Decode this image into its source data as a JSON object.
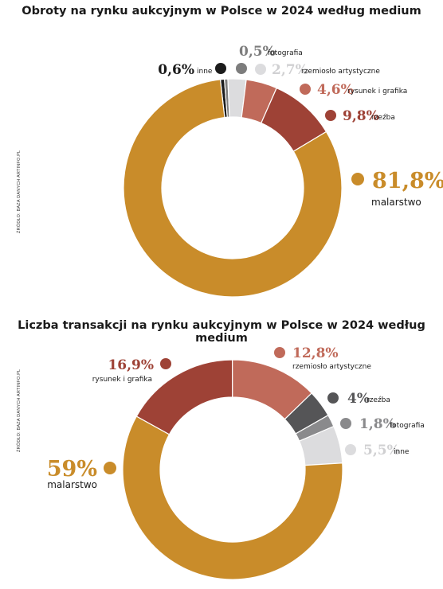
{
  "chart_data": [
    {
      "type": "pie",
      "title": "Obroty na rynku aukcyjnym w Polsce w 2024 według medium",
      "source": "ŹRÓDŁO: BAZA DANYCH ARTINFO.PL",
      "slices": [
        {
          "label": "inne",
          "value": 0.6,
          "display": "0,6%",
          "color": "#1c1c1c",
          "label_color": "#1a1a1a"
        },
        {
          "label": "fotografia",
          "value": 0.5,
          "display": "0,5%",
          "color": "#7d7d7d",
          "label_color": "#7d7d7d"
        },
        {
          "label": "rzemiosło artystyczne",
          "value": 2.7,
          "display": "2,7%",
          "color": "#dcdcde",
          "label_color": "#d0d0d2"
        },
        {
          "label": "rysunek i grafika",
          "value": 4.6,
          "display": "4,6%",
          "color": "#c06a5a",
          "label_color": "#c06a5a"
        },
        {
          "label": "rzeźba",
          "value": 9.8,
          "display": "9,8%",
          "color": "#9e4236",
          "label_color": "#9e4236"
        },
        {
          "label": "malarstwo",
          "value": 81.8,
          "display": "81,8%",
          "color": "#c98c2a",
          "label_color": "#c98c2a"
        }
      ]
    },
    {
      "type": "pie",
      "title": "Liczba transakcji na rynku aukcyjnym w Polsce w 2024 według medium",
      "source": "ŹRÓDŁO: BAZA DANYCH ARTINFO.PL",
      "slices": [
        {
          "label": "rysunek i grafika",
          "value": 16.9,
          "display": "16,9%",
          "color": "#9e4236",
          "label_color": "#9e4236"
        },
        {
          "label": "rzemiosło artystyczne",
          "value": 12.8,
          "display": "12,8%",
          "color": "#c06a5a",
          "label_color": "#c06a5a"
        },
        {
          "label": "rzeźba",
          "value": 4,
          "display": "4%",
          "color": "#555557",
          "label_color": "#555557"
        },
        {
          "label": "fotografia",
          "value": 1.8,
          "display": "1,8%",
          "color": "#8a8a8c",
          "label_color": "#8a8a8c"
        },
        {
          "label": "inne",
          "value": 5.5,
          "display": "5,5%",
          "color": "#dcdcde",
          "label_color": "#d0d0d2"
        },
        {
          "label": "malarstwo",
          "value": 59,
          "display": "59%",
          "color": "#c98c2a",
          "label_color": "#c98c2a"
        }
      ]
    }
  ]
}
